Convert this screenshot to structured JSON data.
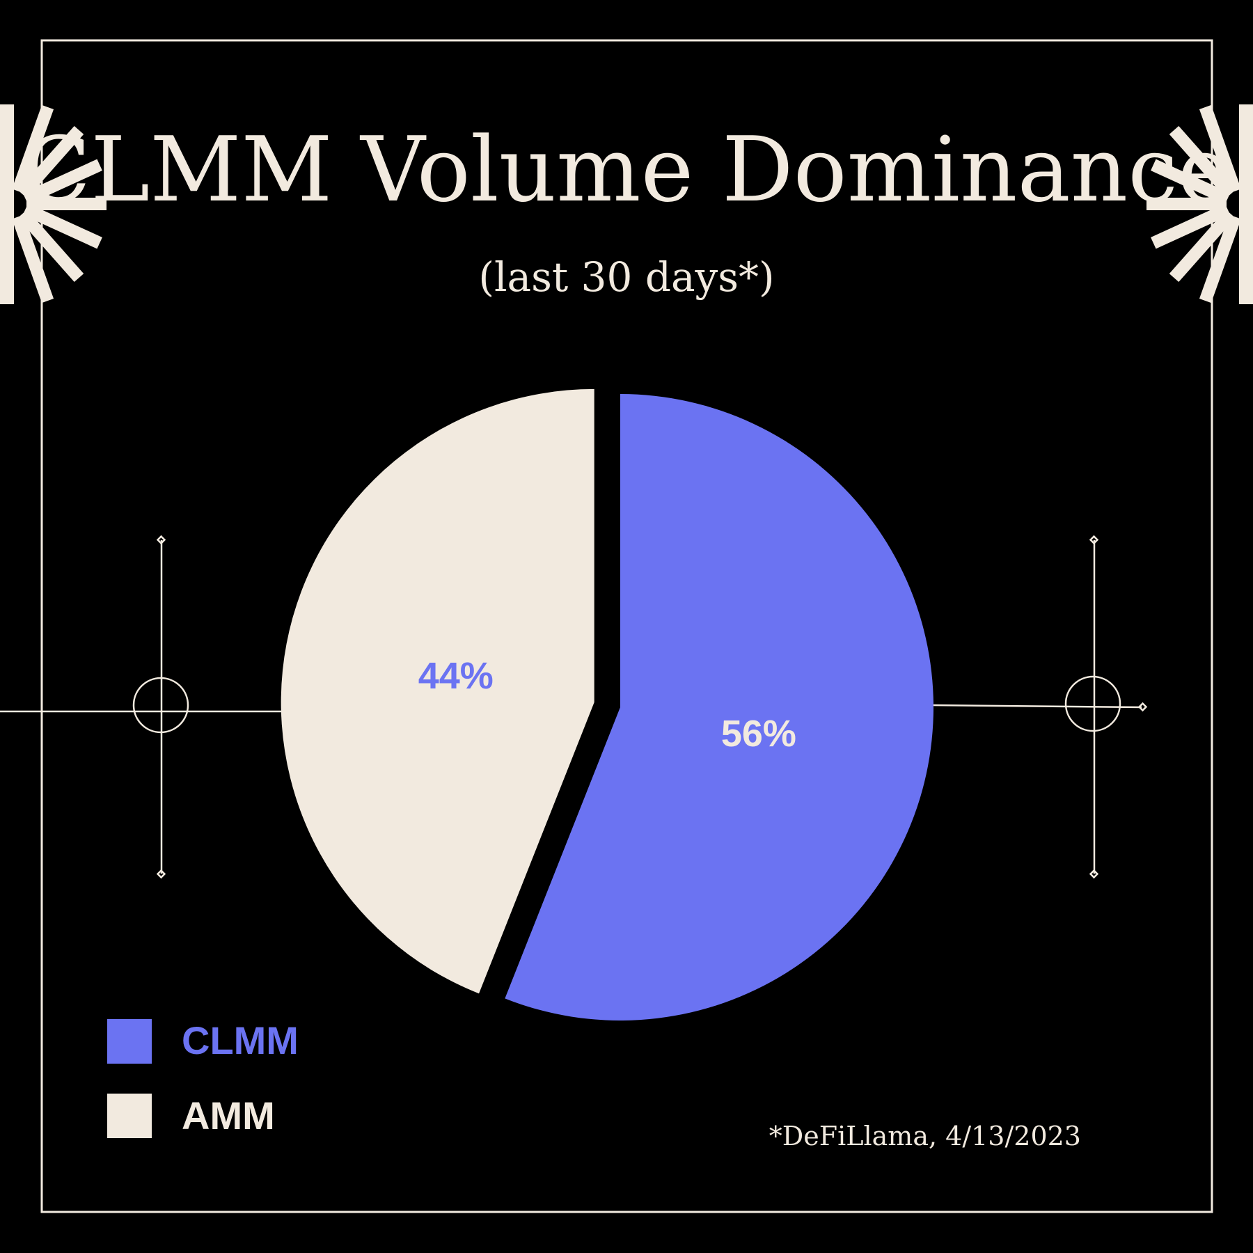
{
  "colors": {
    "background": "#000000",
    "cream": "#f2eadf",
    "clmm": "#6b73f2"
  },
  "chart_data": {
    "type": "pie",
    "title": "CLMM Volume Dominance",
    "subtitle": "(last 30 days*)",
    "categories": [
      "CLMM",
      "AMM"
    ],
    "values": [
      56,
      44
    ],
    "data_labels": [
      "56%",
      "44%"
    ],
    "colors": [
      "#6b73f2",
      "#f2eadf"
    ],
    "legend": {
      "placement": "bottom-left",
      "entries": [
        "CLMM",
        "AMM"
      ]
    },
    "exploded": "AMM",
    "source_note": "*DeFiLlama, 4/13/2023"
  }
}
